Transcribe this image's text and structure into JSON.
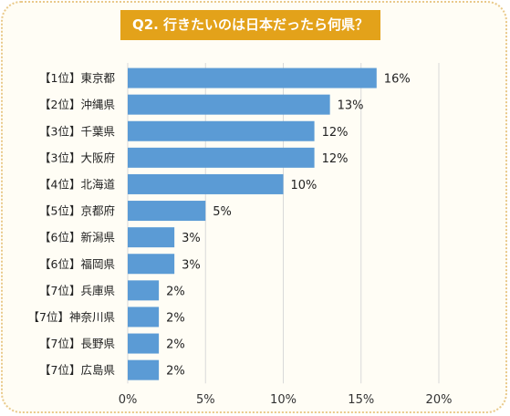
{
  "title": "Q2. 行きたいのは日本だったら何県？",
  "chart_data": {
    "type": "bar",
    "orientation": "horizontal",
    "title": "Q2. 行きたいのは日本だったら何県？",
    "categories": [
      "【1位】東京都",
      "【2位】沖縄県",
      "【3位】千葉県",
      "【3位】大阪府",
      "【4位】北海道",
      "【5位】京都府",
      "【6位】新潟県",
      "【6位】福岡県",
      "【7位】兵庫県",
      "【7位】神奈川県",
      "【7位】長野県",
      "【7位】広島県"
    ],
    "values": [
      16,
      13,
      12,
      12,
      10,
      5,
      3,
      3,
      2,
      2,
      2,
      2
    ],
    "value_labels": [
      "16%",
      "13%",
      "12%",
      "12%",
      "10%",
      "5%",
      "3%",
      "3%",
      "2%",
      "2%",
      "2%",
      "2%"
    ],
    "x_ticks": [
      "0%",
      "5%",
      "10%",
      "15%",
      "20%"
    ],
    "xlim": [
      0,
      20
    ],
    "grid": true,
    "bar_color": "#5b9bd5",
    "title_color": "#e3a21a"
  }
}
